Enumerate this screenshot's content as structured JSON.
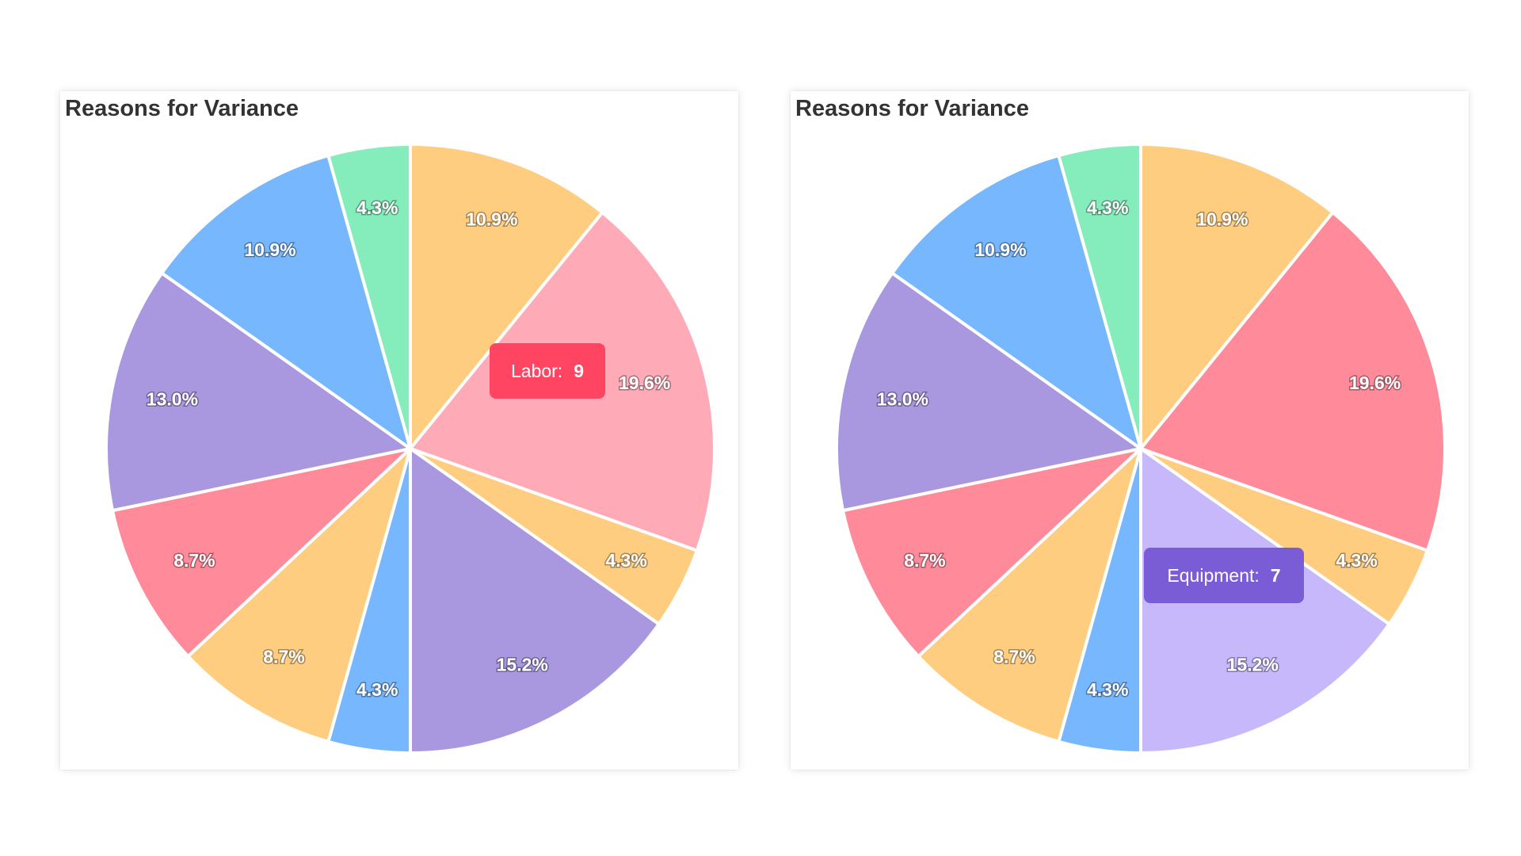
{
  "chart_data": [
    {
      "type": "pie",
      "title": "Reasons for Variance",
      "categories": [
        "",
        "Labor",
        "",
        "Equipment",
        "",
        "",
        "",
        "",
        "",
        ""
      ],
      "values": [
        5,
        9,
        2,
        7,
        2,
        4,
        4,
        6,
        5,
        2
      ],
      "labels": [
        "10.9%",
        "19.6%",
        "4.3%",
        "15.2%",
        "4.3%",
        "8.7%",
        "8.7%",
        "13.0%",
        "10.9%",
        "4.3%"
      ],
      "colors": [
        "#FFCD80",
        "#FFABB7",
        "#FFCD80",
        "#A998E0",
        "#76B7FE",
        "#FFCD80",
        "#FF8A99",
        "#A998E0",
        "#76B7FE",
        "#85EDBC"
      ],
      "tooltip": {
        "label": "Labor:",
        "value": "9",
        "color": "#FF4561"
      }
    },
    {
      "type": "pie",
      "title": "Reasons for Variance",
      "categories": [
        "",
        "Labor",
        "",
        "Equipment",
        "",
        "",
        "",
        "",
        "",
        ""
      ],
      "values": [
        5,
        9,
        2,
        7,
        2,
        4,
        4,
        6,
        5,
        2
      ],
      "labels": [
        "10.9%",
        "19.6%",
        "4.3%",
        "15.2%",
        "4.3%",
        "8.7%",
        "8.7%",
        "13.0%",
        "10.9%",
        "4.3%"
      ],
      "colors": [
        "#FFCD80",
        "#FF8A99",
        "#FFCD80",
        "#C7B8FC",
        "#76B7FE",
        "#FFCD80",
        "#FF8A99",
        "#A998E0",
        "#76B7FE",
        "#85EDBC"
      ],
      "tooltip": {
        "label": "Equipment:",
        "value": "7",
        "color": "#7A5CD6"
      }
    }
  ]
}
